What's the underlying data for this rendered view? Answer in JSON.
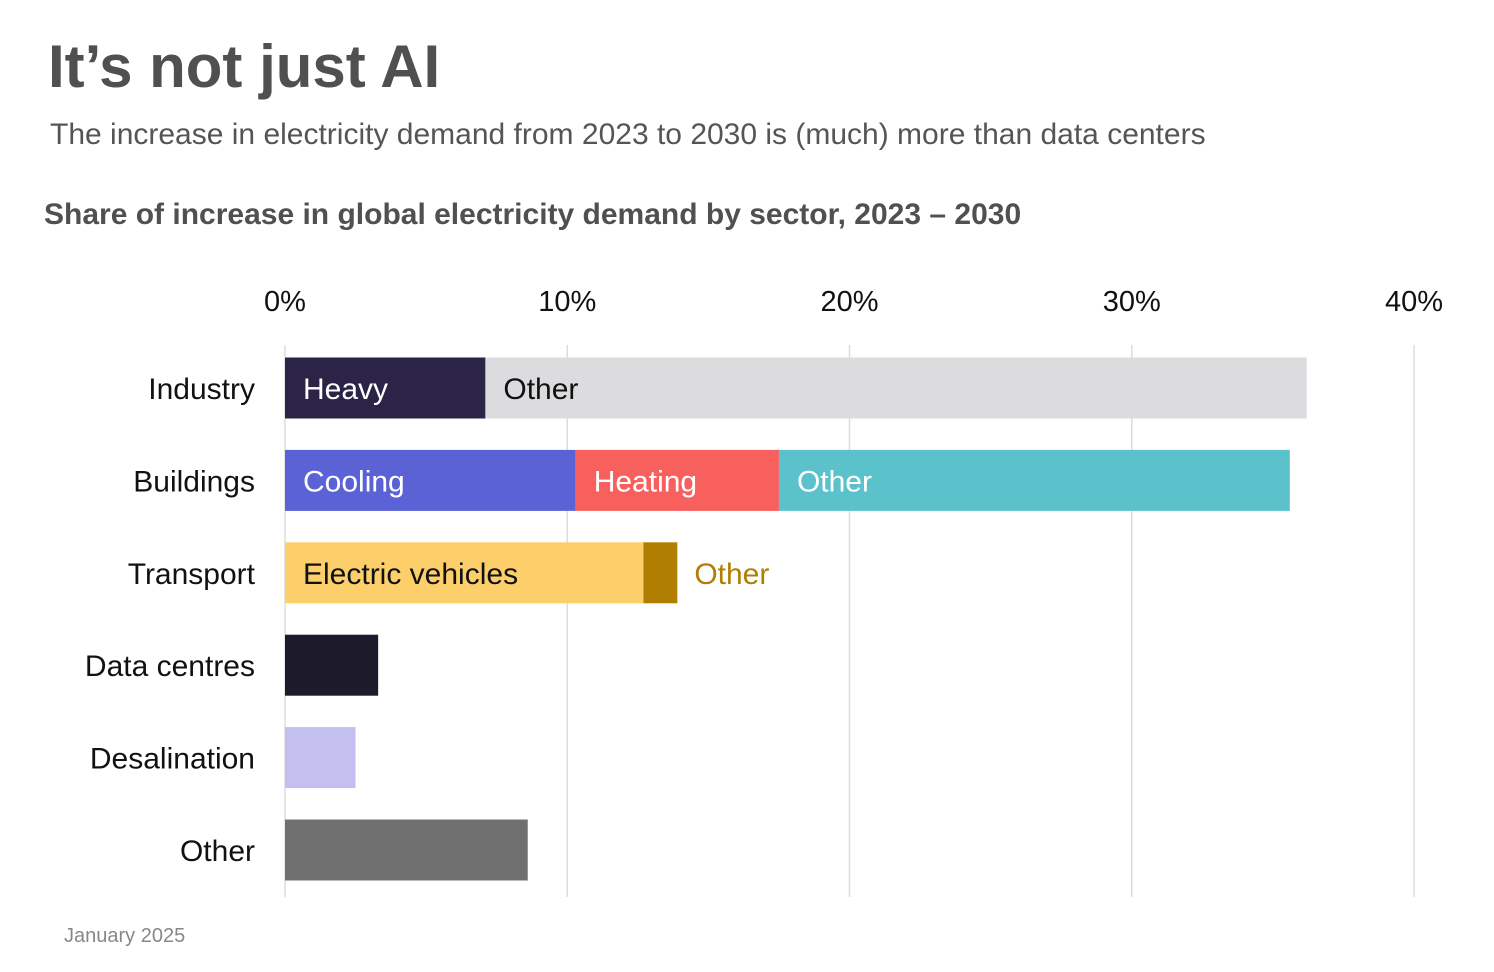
{
  "title": "It’s not just AI",
  "subtitle": "The increase in electricity demand from 2023 to 2030 is (much) more than data centers",
  "footer": "January 2025",
  "chart_data": {
    "type": "bar",
    "orientation": "horizontal",
    "stacked": true,
    "title": "Share of increase in global electricity demand by sector, 2023 – 2030",
    "xlim": [
      0,
      40
    ],
    "ticks": [
      0,
      10,
      20,
      30,
      40
    ],
    "tick_labels": [
      "0%",
      "10%",
      "20%",
      "30%",
      "40%"
    ],
    "grid": true,
    "categories": [
      "Industry",
      "Buildings",
      "Transport",
      "Data centres",
      "Desalination",
      "Other"
    ],
    "bars": [
      {
        "category": "Industry",
        "segments": [
          {
            "label": "Heavy",
            "value": 7.1,
            "color": "#2b2447",
            "text_color": "#ffffff"
          },
          {
            "label": "Other",
            "value": 29.1,
            "color": "#dcdbde",
            "text_color": "#111111"
          }
        ]
      },
      {
        "category": "Buildings",
        "segments": [
          {
            "label": "Cooling",
            "value": 10.3,
            "color": "#5b62d6",
            "text_color": "#ffffff"
          },
          {
            "label": "Heating",
            "value": 7.2,
            "color": "#f8605e",
            "text_color": "#ffffff"
          },
          {
            "label": "Other",
            "value": 18.1,
            "color": "#5bc2cb",
            "text_color": "#ffffff"
          }
        ]
      },
      {
        "category": "Transport",
        "segments": [
          {
            "label": "Electric vehicles",
            "value": 12.7,
            "color": "#fdcf6a",
            "text_color": "#111111"
          },
          {
            "label": "Other",
            "value": 1.2,
            "color": "#b07f02",
            "text_color": "#b07f02",
            "label_outside": true
          }
        ]
      },
      {
        "category": "Data centres",
        "segments": [
          {
            "label": "",
            "value": 3.3,
            "color": "#1d1a2b"
          }
        ]
      },
      {
        "category": "Desalination",
        "segments": [
          {
            "label": "",
            "value": 2.5,
            "color": "#c3c0ef"
          }
        ]
      },
      {
        "category": "Other",
        "segments": [
          {
            "label": "",
            "value": 8.6,
            "color": "#707070"
          }
        ]
      }
    ]
  }
}
